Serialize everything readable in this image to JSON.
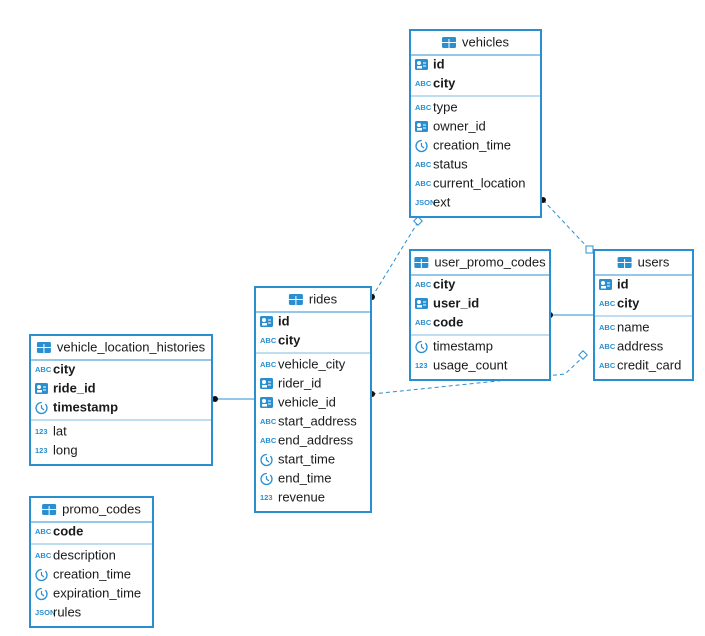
{
  "tables": [
    {
      "name": "vehicles",
      "keys": [
        {
          "name": "id",
          "type": "id"
        },
        {
          "name": "city",
          "type": "ABC"
        }
      ],
      "columns": [
        {
          "name": "type",
          "type": "ABC"
        },
        {
          "name": "owner_id",
          "type": "id"
        },
        {
          "name": "creation_time",
          "type": "time"
        },
        {
          "name": "status",
          "type": "ABC"
        },
        {
          "name": "current_location",
          "type": "ABC"
        },
        {
          "name": "ext",
          "type": "JSON"
        }
      ]
    },
    {
      "name": "user_promo_codes",
      "keys": [
        {
          "name": "city",
          "type": "ABC"
        },
        {
          "name": "user_id",
          "type": "id"
        },
        {
          "name": "code",
          "type": "ABC"
        }
      ],
      "columns": [
        {
          "name": "timestamp",
          "type": "time"
        },
        {
          "name": "usage_count",
          "type": "123"
        }
      ]
    },
    {
      "name": "users",
      "keys": [
        {
          "name": "id",
          "type": "id"
        },
        {
          "name": "city",
          "type": "ABC"
        }
      ],
      "columns": [
        {
          "name": "name",
          "type": "ABC"
        },
        {
          "name": "address",
          "type": "ABC"
        },
        {
          "name": "credit_card",
          "type": "ABC"
        }
      ]
    },
    {
      "name": "rides",
      "keys": [
        {
          "name": "id",
          "type": "id"
        },
        {
          "name": "city",
          "type": "ABC"
        }
      ],
      "columns": [
        {
          "name": "vehicle_city",
          "type": "ABC"
        },
        {
          "name": "rider_id",
          "type": "id"
        },
        {
          "name": "vehicle_id",
          "type": "id"
        },
        {
          "name": "start_address",
          "type": "ABC"
        },
        {
          "name": "end_address",
          "type": "ABC"
        },
        {
          "name": "start_time",
          "type": "time"
        },
        {
          "name": "end_time",
          "type": "time"
        },
        {
          "name": "revenue",
          "type": "123"
        }
      ]
    },
    {
      "name": "vehicle_location_histories",
      "keys": [
        {
          "name": "city",
          "type": "ABC"
        },
        {
          "name": "ride_id",
          "type": "id"
        },
        {
          "name": "timestamp",
          "type": "time"
        }
      ],
      "columns": [
        {
          "name": "lat",
          "type": "123"
        },
        {
          "name": "long",
          "type": "123"
        }
      ]
    },
    {
      "name": "promo_codes",
      "keys": [
        {
          "name": "code",
          "type": "ABC"
        }
      ],
      "columns": [
        {
          "name": "description",
          "type": "ABC"
        },
        {
          "name": "creation_time",
          "type": "time"
        },
        {
          "name": "expiration_time",
          "type": "time"
        },
        {
          "name": "rules",
          "type": "JSON"
        }
      ]
    }
  ]
}
